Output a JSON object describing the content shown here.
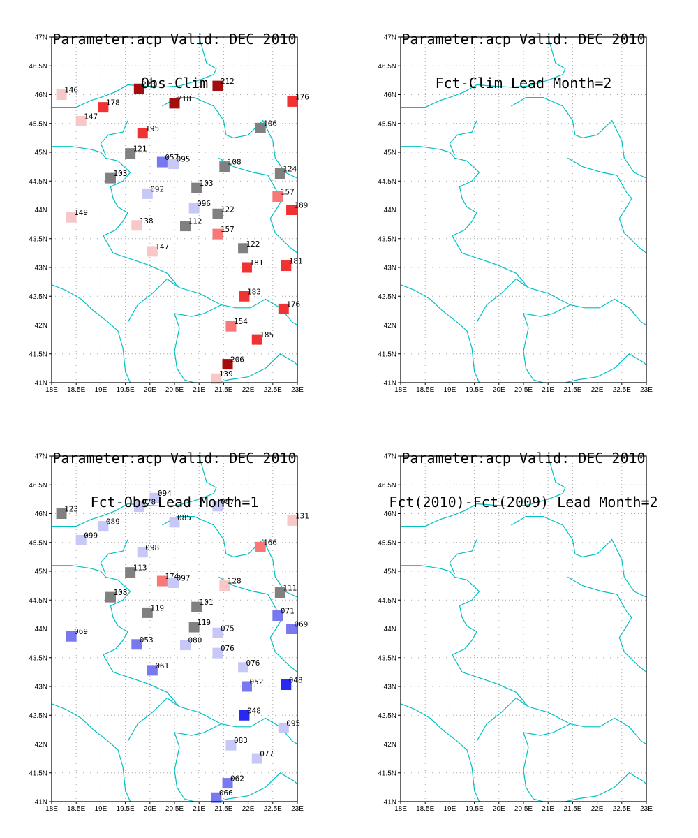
{
  "panels": [
    {
      "title_line1": "Parameter:acp Valid: DEC 2010",
      "title_line2": "Obs-Clim",
      "stations": [
        {
          "lon": 18.2,
          "lat": 46.0,
          "label": "146",
          "color": "#f8c8c8"
        },
        {
          "lon": 19.78,
          "lat": 46.1,
          "label": "223",
          "color": "#a30d0d"
        },
        {
          "lon": 21.38,
          "lat": 46.15,
          "label": "212",
          "color": "#a30d0d"
        },
        {
          "lon": 20.5,
          "lat": 45.85,
          "label": "218",
          "color": "#a30d0d"
        },
        {
          "lon": 22.9,
          "lat": 45.88,
          "label": "176",
          "color": "#f03232"
        },
        {
          "lon": 19.05,
          "lat": 45.78,
          "label": "178",
          "color": "#f03232"
        },
        {
          "lon": 18.6,
          "lat": 45.54,
          "label": "147",
          "color": "#f8c8c8"
        },
        {
          "lon": 19.85,
          "lat": 45.33,
          "label": "195",
          "color": "#f03232"
        },
        {
          "lon": 22.25,
          "lat": 45.42,
          "label": "106",
          "color": "#808080"
        },
        {
          "lon": 19.6,
          "lat": 44.98,
          "label": "121",
          "color": "#808080"
        },
        {
          "lon": 20.25,
          "lat": 44.83,
          "label": "057",
          "color": "#7878f0"
        },
        {
          "lon": 20.48,
          "lat": 44.8,
          "label": "095",
          "color": "#c8c8f8"
        },
        {
          "lon": 21.52,
          "lat": 44.75,
          "label": "108",
          "color": "#808080"
        },
        {
          "lon": 22.65,
          "lat": 44.63,
          "label": "124",
          "color": "#808080"
        },
        {
          "lon": 19.2,
          "lat": 44.55,
          "label": "103",
          "color": "#808080"
        },
        {
          "lon": 20.95,
          "lat": 44.38,
          "label": "103",
          "color": "#808080"
        },
        {
          "lon": 19.95,
          "lat": 44.28,
          "label": "092",
          "color": "#c8c8f8"
        },
        {
          "lon": 22.6,
          "lat": 44.23,
          "label": "157",
          "color": "#f87878"
        },
        {
          "lon": 20.9,
          "lat": 44.03,
          "label": "096",
          "color": "#c8c8f8"
        },
        {
          "lon": 22.88,
          "lat": 44.0,
          "label": "189",
          "color": "#f03232"
        },
        {
          "lon": 21.38,
          "lat": 43.93,
          "label": "122",
          "color": "#808080"
        },
        {
          "lon": 18.4,
          "lat": 43.87,
          "label": "149",
          "color": "#f8c8c8"
        },
        {
          "lon": 19.73,
          "lat": 43.73,
          "label": "138",
          "color": "#f8c8c8"
        },
        {
          "lon": 20.72,
          "lat": 43.72,
          "label": "112",
          "color": "#808080"
        },
        {
          "lon": 21.38,
          "lat": 43.58,
          "label": "157",
          "color": "#f87878"
        },
        {
          "lon": 21.9,
          "lat": 43.33,
          "label": "122",
          "color": "#808080"
        },
        {
          "lon": 20.05,
          "lat": 43.28,
          "label": "147",
          "color": "#f8c8c8"
        },
        {
          "lon": 21.97,
          "lat": 43.0,
          "label": "181",
          "color": "#f03232"
        },
        {
          "lon": 22.77,
          "lat": 43.03,
          "label": "181",
          "color": "#f03232"
        },
        {
          "lon": 21.92,
          "lat": 42.5,
          "label": "183",
          "color": "#f03232"
        },
        {
          "lon": 22.72,
          "lat": 42.28,
          "label": "176",
          "color": "#f03232"
        },
        {
          "lon": 21.65,
          "lat": 41.98,
          "label": "154",
          "color": "#f87878"
        },
        {
          "lon": 22.18,
          "lat": 41.75,
          "label": "185",
          "color": "#f03232"
        },
        {
          "lon": 21.58,
          "lat": 41.32,
          "label": "206",
          "color": "#a30d0d"
        },
        {
          "lon": 21.35,
          "lat": 41.07,
          "label": "139",
          "color": "#f8c8c8"
        }
      ]
    },
    {
      "title_line1": "Parameter:acp Valid: DEC 2010",
      "title_line2": "Fct-Clim Lead Month=2",
      "stations": []
    },
    {
      "title_line1": "Parameter:acp Valid: DEC 2010",
      "title_line2": "Fct-Obs Lead Month=1",
      "stations": [
        {
          "lon": 18.2,
          "lat": 46.0,
          "label": "123",
          "color": "#808080"
        },
        {
          "lon": 20.1,
          "lat": 46.27,
          "label": "094",
          "color": "#c8c8f8"
        },
        {
          "lon": 19.78,
          "lat": 46.12,
          "label": "078",
          "color": "#c8c8f8"
        },
        {
          "lon": 21.38,
          "lat": 46.13,
          "label": "087",
          "color": "#c8c8f8"
        },
        {
          "lon": 22.9,
          "lat": 45.88,
          "label": "131",
          "color": "#f8c8c8"
        },
        {
          "lon": 19.05,
          "lat": 45.78,
          "label": "089",
          "color": "#c8c8f8"
        },
        {
          "lon": 20.5,
          "lat": 45.85,
          "label": "085",
          "color": "#c8c8f8"
        },
        {
          "lon": 18.6,
          "lat": 45.54,
          "label": "099",
          "color": "#c8c8f8"
        },
        {
          "lon": 22.25,
          "lat": 45.42,
          "label": "166",
          "color": "#f87878"
        },
        {
          "lon": 19.85,
          "lat": 45.33,
          "label": "098",
          "color": "#c8c8f8"
        },
        {
          "lon": 19.6,
          "lat": 44.98,
          "label": "113",
          "color": "#808080"
        },
        {
          "lon": 20.25,
          "lat": 44.83,
          "label": "174",
          "color": "#f87878"
        },
        {
          "lon": 20.48,
          "lat": 44.8,
          "label": "097",
          "color": "#c8c8f8"
        },
        {
          "lon": 21.52,
          "lat": 44.75,
          "label": "128",
          "color": "#f8c8c8"
        },
        {
          "lon": 22.65,
          "lat": 44.63,
          "label": "111",
          "color": "#808080"
        },
        {
          "lon": 19.2,
          "lat": 44.55,
          "label": "108",
          "color": "#808080"
        },
        {
          "lon": 20.95,
          "lat": 44.38,
          "label": "101",
          "color": "#808080"
        },
        {
          "lon": 19.95,
          "lat": 44.28,
          "label": "119",
          "color": "#808080"
        },
        {
          "lon": 22.6,
          "lat": 44.23,
          "label": "071",
          "color": "#7878f0"
        },
        {
          "lon": 20.9,
          "lat": 44.03,
          "label": "119",
          "color": "#808080"
        },
        {
          "lon": 22.88,
          "lat": 44.0,
          "label": "069",
          "color": "#7878f0"
        },
        {
          "lon": 21.38,
          "lat": 43.93,
          "label": "075",
          "color": "#c8c8f8"
        },
        {
          "lon": 18.4,
          "lat": 43.87,
          "label": "069",
          "color": "#7878f0"
        },
        {
          "lon": 19.73,
          "lat": 43.73,
          "label": "053",
          "color": "#7878f0"
        },
        {
          "lon": 20.72,
          "lat": 43.72,
          "label": "080",
          "color": "#c8c8f8"
        },
        {
          "lon": 21.38,
          "lat": 43.58,
          "label": "076",
          "color": "#c8c8f8"
        },
        {
          "lon": 21.9,
          "lat": 43.33,
          "label": "076",
          "color": "#c8c8f8"
        },
        {
          "lon": 20.05,
          "lat": 43.28,
          "label": "061",
          "color": "#7878f0"
        },
        {
          "lon": 21.97,
          "lat": 43.0,
          "label": "052",
          "color": "#7878f0"
        },
        {
          "lon": 22.77,
          "lat": 43.03,
          "label": "048",
          "color": "#2828f0"
        },
        {
          "lon": 21.92,
          "lat": 42.5,
          "label": "048",
          "color": "#2828f0"
        },
        {
          "lon": 22.72,
          "lat": 42.28,
          "label": "095",
          "color": "#c8c8f8"
        },
        {
          "lon": 21.65,
          "lat": 41.98,
          "label": "083",
          "color": "#c8c8f8"
        },
        {
          "lon": 22.18,
          "lat": 41.75,
          "label": "077",
          "color": "#c8c8f8"
        },
        {
          "lon": 21.58,
          "lat": 41.32,
          "label": "062",
          "color": "#7878f0"
        },
        {
          "lon": 21.35,
          "lat": 41.07,
          "label": "066",
          "color": "#7878f0"
        }
      ]
    },
    {
      "title_line1": "Parameter:acp Valid: DEC 2010",
      "title_line2": "Fct(2010)-Fct(2009) Lead Month=2",
      "stations": []
    }
  ],
  "axes": {
    "lon_range": [
      18,
      23
    ],
    "lat_range": [
      41,
      47
    ],
    "x_ticks": [
      {
        "value": 18,
        "label": "18E"
      },
      {
        "value": 18.5,
        "label": "18.5E"
      },
      {
        "value": 19,
        "label": "19E"
      },
      {
        "value": 19.5,
        "label": "19.5E"
      },
      {
        "value": 20,
        "label": "20E"
      },
      {
        "value": 20.5,
        "label": "20.5E"
      },
      {
        "value": 21,
        "label": "21E"
      },
      {
        "value": 21.5,
        "label": "21.5E"
      },
      {
        "value": 22,
        "label": "22E"
      },
      {
        "value": 22.5,
        "label": "22.5E"
      },
      {
        "value": 23,
        "label": "23E"
      }
    ],
    "y_ticks": [
      {
        "value": 41,
        "label": "41N"
      },
      {
        "value": 41.5,
        "label": "41.5N"
      },
      {
        "value": 42,
        "label": "42N"
      },
      {
        "value": 42.5,
        "label": "42.5N"
      },
      {
        "value": 43,
        "label": "43N"
      },
      {
        "value": 43.5,
        "label": "43.5N"
      },
      {
        "value": 44,
        "label": "44N"
      },
      {
        "value": 44.5,
        "label": "44.5N"
      },
      {
        "value": 45,
        "label": "45N"
      },
      {
        "value": 45.5,
        "label": "45.5N"
      },
      {
        "value": 46,
        "label": "46N"
      },
      {
        "value": 46.5,
        "label": "46.5N"
      },
      {
        "value": 47,
        "label": "47N"
      }
    ],
    "grid": "dotted"
  },
  "colors": {
    "border": "#00c0c0",
    "grid": "#aaaaaa",
    "frame": "#000000"
  },
  "borders": [
    [
      [
        21.0,
        47.0
      ],
      [
        21.15,
        46.55
      ],
      [
        21.35,
        46.45
      ],
      [
        21.3,
        46.35
      ],
      [
        21.0,
        46.25
      ],
      [
        20.6,
        46.15
      ],
      [
        20.25,
        46.13
      ],
      [
        19.85,
        46.15
      ],
      [
        19.55,
        46.17
      ],
      [
        19.3,
        46.05
      ],
      [
        19.0,
        45.95
      ],
      [
        18.8,
        45.9
      ],
      [
        18.5,
        45.78
      ],
      [
        18.0,
        45.78
      ]
    ],
    [
      [
        18.0,
        45.1
      ],
      [
        18.4,
        45.1
      ],
      [
        18.8,
        45.05
      ],
      [
        19.0,
        45.0
      ],
      [
        19.1,
        44.9
      ],
      [
        19.35,
        44.85
      ],
      [
        19.6,
        44.65
      ],
      [
        19.45,
        44.5
      ],
      [
        19.2,
        44.4
      ],
      [
        19.25,
        44.2
      ],
      [
        19.35,
        44.05
      ],
      [
        19.55,
        43.95
      ],
      [
        19.45,
        43.8
      ],
      [
        19.3,
        43.65
      ],
      [
        19.05,
        43.55
      ]
    ],
    [
      [
        19.55,
        45.55
      ],
      [
        19.45,
        45.35
      ],
      [
        19.15,
        45.3
      ],
      [
        19.0,
        45.15
      ],
      [
        19.1,
        44.95
      ]
    ],
    [
      [
        20.25,
        45.8
      ],
      [
        20.55,
        45.95
      ],
      [
        20.9,
        45.95
      ],
      [
        21.3,
        45.8
      ],
      [
        21.5,
        45.55
      ],
      [
        21.55,
        45.3
      ],
      [
        21.7,
        45.25
      ],
      [
        22.0,
        45.3
      ],
      [
        22.3,
        45.55
      ],
      [
        22.5,
        45.2
      ],
      [
        22.55,
        44.9
      ],
      [
        22.75,
        44.65
      ],
      [
        23.0,
        44.55
      ]
    ],
    [
      [
        21.4,
        44.9
      ],
      [
        21.7,
        44.75
      ],
      [
        22.1,
        44.65
      ],
      [
        22.4,
        44.6
      ],
      [
        22.6,
        44.3
      ],
      [
        22.7,
        44.2
      ],
      [
        22.6,
        44.05
      ],
      [
        22.45,
        43.85
      ],
      [
        22.55,
        43.6
      ],
      [
        22.85,
        43.35
      ],
      [
        23.0,
        43.25
      ]
    ],
    [
      [
        19.05,
        43.55
      ],
      [
        19.25,
        43.25
      ],
      [
        19.6,
        43.15
      ],
      [
        19.95,
        43.05
      ],
      [
        20.35,
        42.9
      ],
      [
        20.6,
        42.65
      ],
      [
        21.0,
        42.55
      ],
      [
        21.45,
        42.35
      ],
      [
        21.75,
        42.3
      ],
      [
        22.05,
        42.3
      ],
      [
        22.35,
        42.45
      ],
      [
        22.65,
        42.3
      ],
      [
        22.9,
        42.05
      ],
      [
        23.0,
        42.0
      ]
    ],
    [
      [
        18.0,
        42.7
      ],
      [
        18.3,
        42.6
      ],
      [
        18.6,
        42.45
      ],
      [
        18.85,
        42.25
      ],
      [
        19.15,
        42.05
      ],
      [
        19.35,
        41.9
      ],
      [
        19.45,
        41.6
      ],
      [
        19.5,
        41.2
      ],
      [
        19.6,
        41.0
      ]
    ],
    [
      [
        19.55,
        42.05
      ],
      [
        19.75,
        42.35
      ],
      [
        20.05,
        42.55
      ],
      [
        20.35,
        42.8
      ],
      [
        20.6,
        42.65
      ]
    ],
    [
      [
        20.5,
        42.2
      ],
      [
        20.6,
        41.95
      ],
      [
        20.5,
        41.55
      ],
      [
        20.55,
        41.25
      ],
      [
        20.7,
        41.05
      ]
    ],
    [
      [
        20.5,
        42.2
      ],
      [
        20.85,
        42.15
      ],
      [
        21.1,
        42.2
      ],
      [
        21.45,
        42.35
      ]
    ],
    [
      [
        20.7,
        41.05
      ],
      [
        21.1,
        40.95
      ],
      [
        21.6,
        41.05
      ],
      [
        22.0,
        41.1
      ],
      [
        22.35,
        41.25
      ],
      [
        22.65,
        41.5
      ],
      [
        22.95,
        41.35
      ],
      [
        23.0,
        41.3
      ]
    ]
  ]
}
